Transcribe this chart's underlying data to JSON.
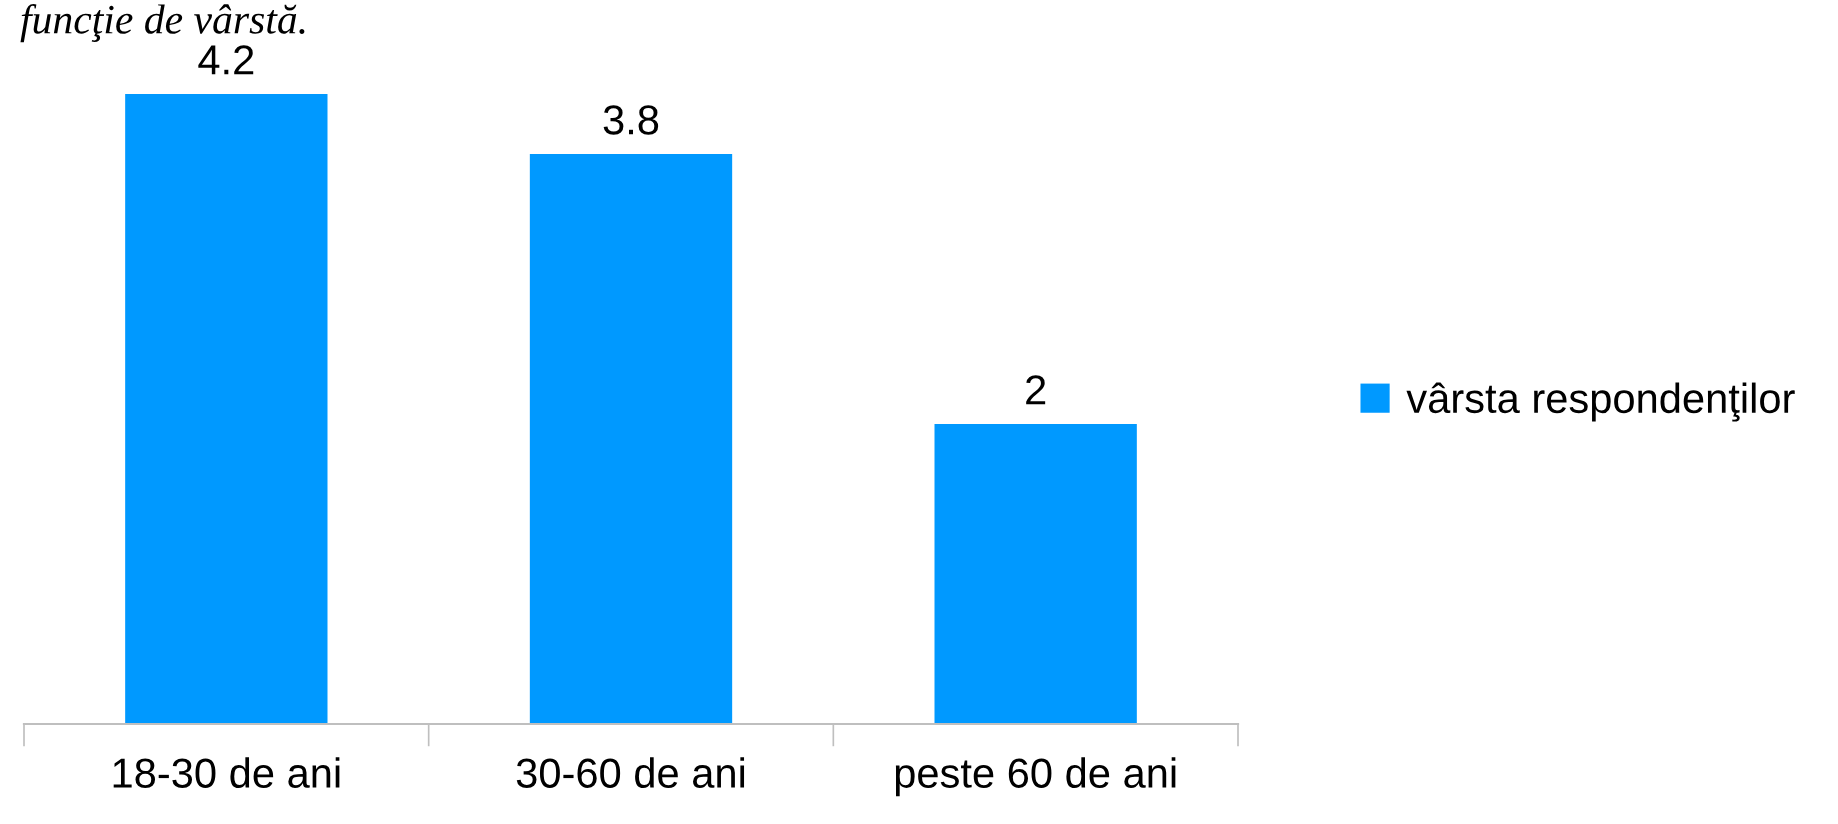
{
  "chart_data": {
    "type": "bar",
    "categories": [
      "18-30 de ani",
      "30-60 de ani",
      "peste 60 de ani"
    ],
    "series": [
      {
        "name": "vârsta respondenţilor",
        "color": "#0099ff",
        "values": [
          4.2,
          3.8,
          2
        ]
      }
    ],
    "data_labels": true,
    "legend": "right",
    "grid": false,
    "annotations": [
      "funcţie de vârstă."
    ]
  }
}
